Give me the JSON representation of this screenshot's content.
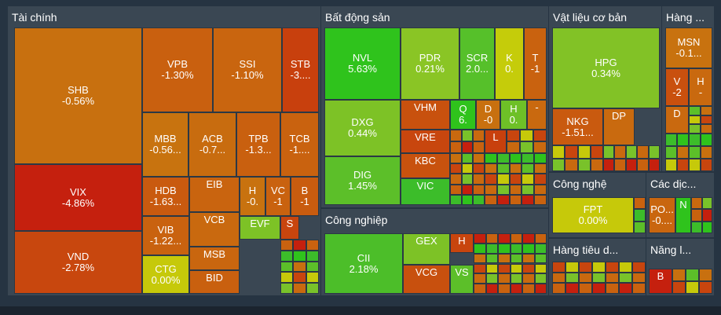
{
  "sectors": {
    "fin": "Tài chính",
    "re": "Bất động sản",
    "mat": "Vật liệu cơ bản",
    "cons": "Hàng ...",
    "ind": "Công nghiệp",
    "tech": "Công nghệ",
    "svc": "Các dịc...",
    "retail": "Hàng tiêu d...",
    "energy": "Năng l..."
  },
  "colors": {
    "deep_red": "#c7240d",
    "red_orange": "#c9470e",
    "orange": "#c96a10",
    "orange2": "#cf7a12",
    "yellow": "#c9cf0a",
    "lime": "#79c22a",
    "green": "#35b52a",
    "bright_green": "#2fc41d"
  },
  "tiles": [
    {
      "s": "SHB",
      "c": "-0.56%",
      "col": "#c8700f"
    },
    {
      "s": "VIX",
      "c": "-4.86%",
      "col": "#c5200e"
    },
    {
      "s": "VND",
      "c": "-2.78%",
      "col": "#c8470e"
    },
    {
      "s": "VPB",
      "c": "-1.30%",
      "col": "#c9600f"
    },
    {
      "s": "SSI",
      "c": "-1.10%",
      "col": "#c9650f"
    },
    {
      "s": "STB",
      "c": "-3....",
      "col": "#c8400d"
    },
    {
      "s": "MBB",
      "c": "-0.56...",
      "col": "#c8730f"
    },
    {
      "s": "ACB",
      "c": "-0.7...",
      "col": "#c86c0f"
    },
    {
      "s": "TPB",
      "c": "-1.3...",
      "col": "#c9600f"
    },
    {
      "s": "TCB",
      "c": "-1....",
      "col": "#c9620f"
    },
    {
      "s": "HDB",
      "c": "-1.63...",
      "col": "#c95a0f"
    },
    {
      "s": "EIB",
      "c": "",
      "col": "#c9640f"
    },
    {
      "s": "H",
      "c": "-0.",
      "col": "#c8720f"
    },
    {
      "s": "VC",
      "c": "-1",
      "col": "#c9620f"
    },
    {
      "s": "B",
      "c": "-1",
      "col": "#c95c0f"
    },
    {
      "s": "VCB",
      "c": "",
      "col": "#c9690f"
    },
    {
      "s": "VIB",
      "c": "-1.22...",
      "col": "#c9620f"
    },
    {
      "s": "EVF",
      "c": "",
      "col": "#7dc226"
    },
    {
      "s": "S",
      "c": "",
      "col": "#c8450e"
    },
    {
      "s": "MSB",
      "c": "",
      "col": "#c9660f"
    },
    {
      "s": "CTG",
      "c": "0.00%",
      "col": "#c6c90a"
    },
    {
      "s": "BID",
      "c": "",
      "col": "#c9600f"
    },
    {
      "s": "NVL",
      "c": "5.63%",
      "col": "#2fc31c"
    },
    {
      "s": "PDR",
      "c": "0.21%",
      "col": "#8ac525"
    },
    {
      "s": "SCR",
      "c": "2.0...",
      "col": "#56c02a"
    },
    {
      "s": "K",
      "c": "0.",
      "col": "#c5cc0a"
    },
    {
      "s": "T",
      "c": "-1",
      "col": "#c9620f"
    },
    {
      "s": "DXG",
      "c": "0.44%",
      "col": "#7dc226"
    },
    {
      "s": "VHM",
      "c": "",
      "col": "#c8510e"
    },
    {
      "s": "Q",
      "c": "6.",
      "col": "#2fc31c"
    },
    {
      "s": "D",
      "c": "-0",
      "col": "#c8700f"
    },
    {
      "s": "H",
      "c": "0.",
      "col": "#6ec027"
    },
    {
      "s": "-",
      "c": "",
      "col": "#c9690f"
    },
    {
      "s": "VRE",
      "c": "",
      "col": "#c8460e"
    },
    {
      "s": "L",
      "c": "",
      "col": "#c8400d"
    },
    {
      "s": "KBC",
      "c": "",
      "col": "#c8520e"
    },
    {
      "s": "DIG",
      "c": "1.45%",
      "col": "#5cbf29"
    },
    {
      "s": "VIC",
      "c": "",
      "col": "#3cbd2a"
    },
    {
      "s": "GEX",
      "c": "",
      "col": "#7dc226"
    },
    {
      "s": "H",
      "c": "",
      "col": "#c8450e"
    },
    {
      "s": "CII",
      "c": "2.18%",
      "col": "#4cbe29"
    },
    {
      "s": "VCG",
      "c": "",
      "col": "#c8500e"
    },
    {
      "s": "VS",
      "c": "",
      "col": "#5cbf29"
    },
    {
      "s": "HPG",
      "c": "0.34%",
      "col": "#82c226"
    },
    {
      "s": "NKG",
      "c": "-1.51...",
      "col": "#c95a0f"
    },
    {
      "s": "DP",
      "c": "",
      "col": "#c96a0f"
    },
    {
      "s": "MSN",
      "c": "-0.1...",
      "col": "#c8720f"
    },
    {
      "s": "V",
      "c": "-2",
      "col": "#c9500e"
    },
    {
      "s": "H",
      "c": "-",
      "col": "#c9690f"
    },
    {
      "s": "D",
      "c": "",
      "col": "#c9690f"
    },
    {
      "s": "FPT",
      "c": "0.00%",
      "col": "#c6c90a"
    },
    {
      "s": "PO...",
      "c": "-0....",
      "col": "#c9660f"
    },
    {
      "s": "N",
      "c": "",
      "col": "#2fc31c"
    },
    {
      "s": "B",
      "c": "",
      "col": "#c5200e"
    }
  ]
}
